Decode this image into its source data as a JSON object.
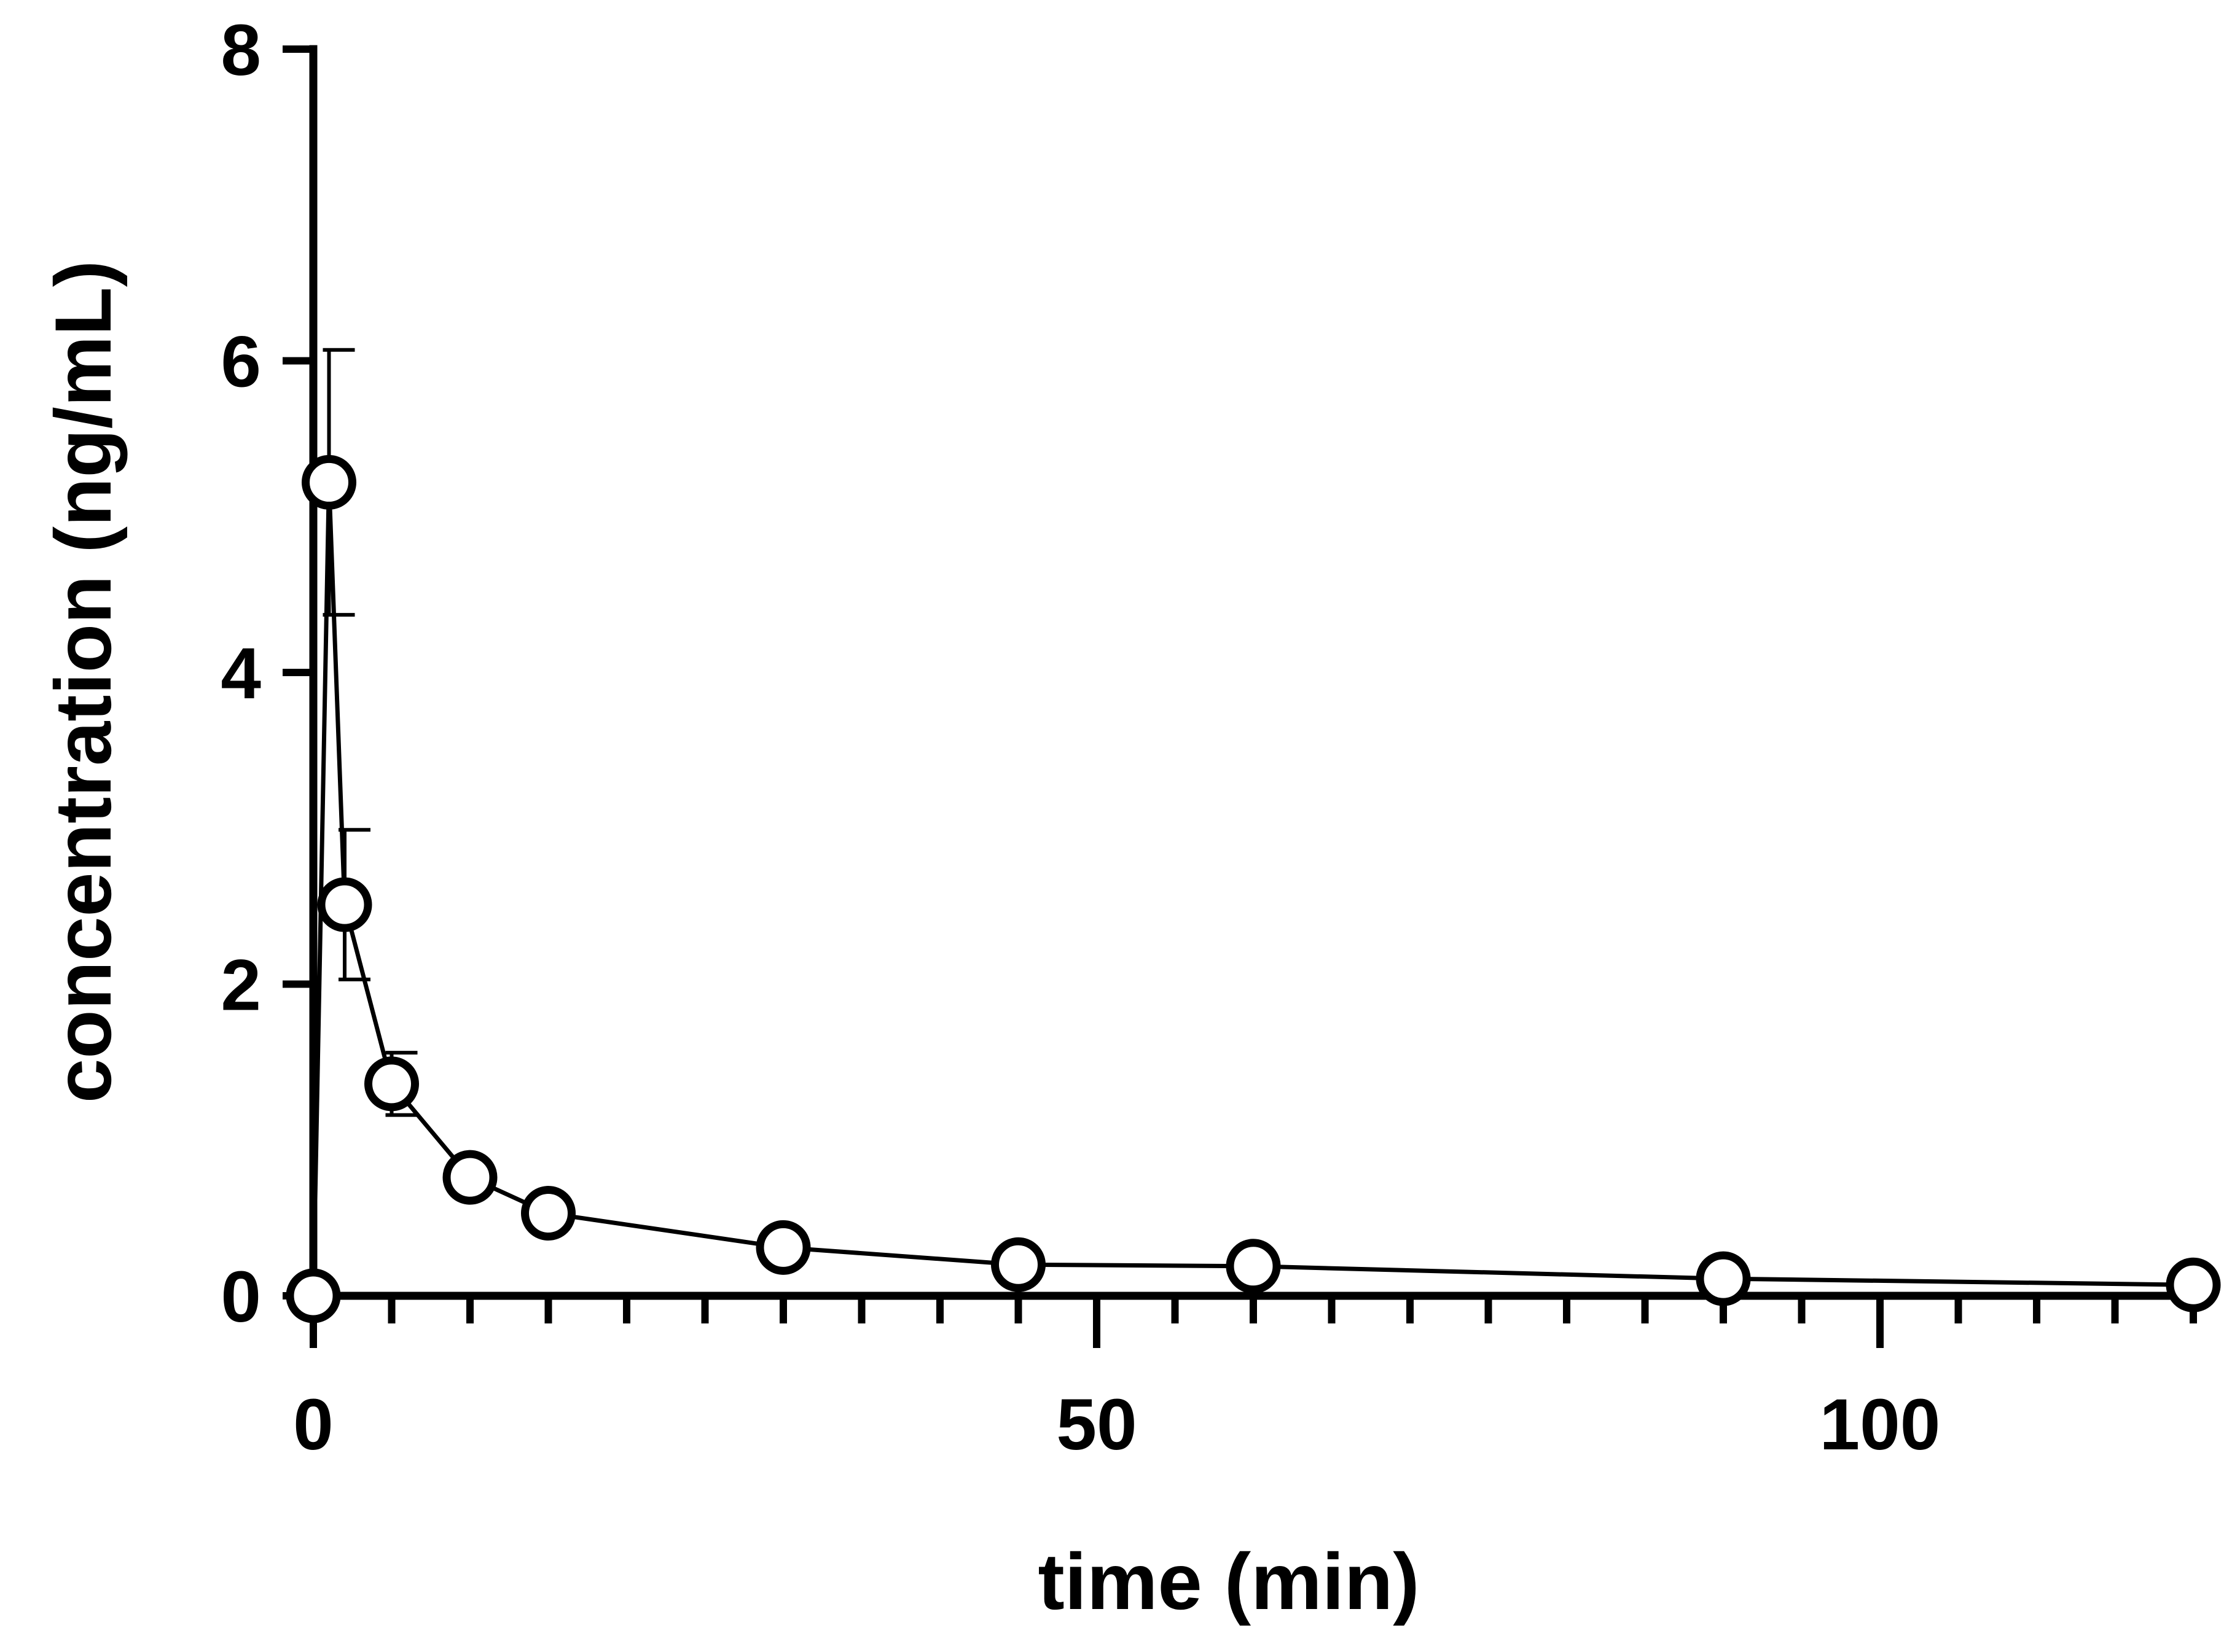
{
  "chart_data": {
    "type": "line",
    "title": "",
    "xlabel": "time (min)",
    "ylabel": "concentration (ng/mL)",
    "xlim": [
      0,
      120
    ],
    "ylim": [
      0,
      8
    ],
    "x_ticks": [
      0,
      50,
      100
    ],
    "x_tick_labels": [
      "0",
      "50",
      "100"
    ],
    "x_minor_tick_step": 5,
    "y_ticks": [
      0,
      2,
      4,
      6,
      8
    ],
    "y_tick_labels": [
      "0",
      "2",
      "4",
      "6",
      "8"
    ],
    "grid": false,
    "legend": false,
    "colors": {
      "line": "#000000",
      "marker_fill": "#ffffff",
      "axis": "#000000"
    },
    "series": [
      {
        "marker": "open-circle",
        "x": [
          0,
          1,
          2,
          5,
          10,
          15,
          30,
          45,
          60,
          90,
          120
        ],
        "y": [
          0,
          5.22,
          2.51,
          1.36,
          0.76,
          0.53,
          0.31,
          0.2,
          0.19,
          0.11,
          0.07
        ],
        "error": [
          0,
          0.85,
          0.48,
          0.2,
          0.05,
          0.03,
          0.02,
          0.01,
          0.01,
          0.01,
          0.01
        ]
      }
    ]
  }
}
